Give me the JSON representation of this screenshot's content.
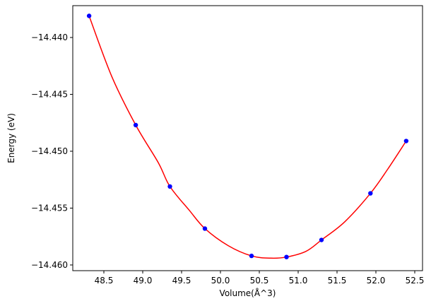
{
  "chart_data": {
    "type": "scatter",
    "title": "",
    "xlabel": "Volume(Å^3)",
    "ylabel": "Energy (eV)",
    "xlim": [
      48.1,
      52.6
    ],
    "ylim": [
      -14.4605,
      -14.4372
    ],
    "grid": false,
    "legend": "none",
    "x_ticks": [
      48.5,
      49.0,
      49.5,
      50.0,
      50.5,
      51.0,
      51.5,
      52.0,
      52.5
    ],
    "x_tick_labels": [
      "48.5",
      "49.0",
      "49.5",
      "50.0",
      "50.5",
      "51.0",
      "51.5",
      "52.0",
      "52.5"
    ],
    "y_ticks": [
      -14.44,
      -14.445,
      -14.45,
      -14.455,
      -14.46
    ],
    "y_tick_labels": [
      "−14.440",
      "−14.445",
      "−14.450",
      "−14.455",
      "−14.460"
    ],
    "series": [
      {
        "kind": "points",
        "color": "#0000ff",
        "x": [
          48.31,
          48.91,
          49.35,
          49.8,
          50.4,
          50.85,
          51.3,
          51.93,
          52.39
        ],
        "y": [
          -14.4381,
          -14.4477,
          -14.4531,
          -14.4568,
          -14.4592,
          -14.4593,
          -14.4578,
          -14.4537,
          -14.4491
        ]
      },
      {
        "kind": "fit-curve",
        "color": "#ff0000",
        "x": [
          48.31,
          48.6,
          48.91,
          49.2,
          49.35,
          49.6,
          49.8,
          50.1,
          50.4,
          50.65,
          50.85,
          51.1,
          51.3,
          51.6,
          51.93,
          52.15,
          52.39
        ],
        "y": [
          -14.4381,
          -14.4434,
          -14.4477,
          -14.451,
          -14.4531,
          -14.4552,
          -14.4568,
          -14.4583,
          -14.4592,
          -14.4594,
          -14.4593,
          -14.4588,
          -14.4578,
          -14.4562,
          -14.4537,
          -14.4516,
          -14.4491
        ]
      }
    ]
  }
}
